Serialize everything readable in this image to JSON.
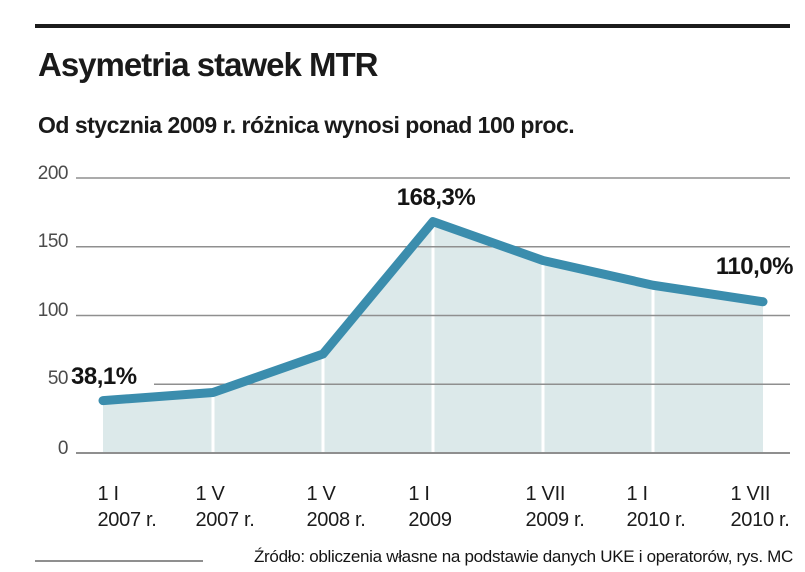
{
  "header": {
    "title": "Asymetria stawek MTR",
    "subtitle": "Od stycznia 2009 r. różnica wynosi ponad 100 proc."
  },
  "chart_data": {
    "type": "area",
    "title": "Asymetria stawek MTR",
    "subtitle": "Od stycznia 2009 r. różnica wynosi ponad 100 proc.",
    "x_tick_labels": [
      {
        "line1": "1 I",
        "line2": "2007 r."
      },
      {
        "line1": "1 V",
        "line2": "2007 r."
      },
      {
        "line1": "1 V",
        "line2": "2008 r."
      },
      {
        "line1": "1 I",
        "line2": "2009"
      },
      {
        "line1": "1 VII",
        "line2": "2009 r."
      },
      {
        "line1": "1 I",
        "line2": "2010 r."
      },
      {
        "line1": "1 VII",
        "line2": "2010 r."
      }
    ],
    "values": [
      38.1,
      44,
      72,
      168.3,
      140,
      122,
      110
    ],
    "y_ticks": [
      200,
      150,
      100,
      50,
      0
    ],
    "ylim": [
      0,
      200
    ],
    "grid": true,
    "legend": "none",
    "annotations": {
      "first": "38,1%",
      "peak": "168,3%",
      "last": "110,0%"
    },
    "colors": {
      "line": "#3b8dad",
      "fill": "#dce9ea",
      "grid": "#8f8f8f"
    }
  },
  "footer": {
    "source": "Źródło: obliczenia własne na podstawie danych UKE i operatorów, rys. MC"
  }
}
